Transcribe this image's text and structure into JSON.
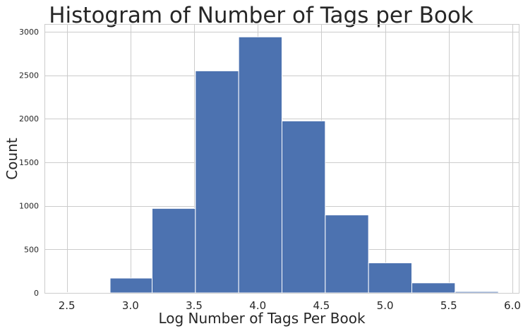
{
  "chart_data": {
    "type": "bar",
    "title": "Histogram of Number of Tags per Book",
    "xlabel": "Log Number of Tags Per Book",
    "ylabel": "Count",
    "bar_color": "#4c72b0",
    "background": "#ffffff",
    "grid_color": "#cccccc",
    "grid": true,
    "xlim": [
      2.33,
      6.05
    ],
    "ylim": [
      0,
      3080
    ],
    "xticks": [
      2.5,
      3.0,
      3.5,
      4.0,
      4.5,
      5.0,
      5.5,
      6.0
    ],
    "xtick_labels": [
      "2.5",
      "3.0",
      "3.5",
      "4.0",
      "4.5",
      "5.0",
      "5.5",
      "6.0"
    ],
    "yticks": [
      0,
      500,
      1000,
      1500,
      2000,
      2500,
      3000
    ],
    "ytick_labels": [
      "0",
      "500",
      "1000",
      "1500",
      "2000",
      "2500",
      "3000"
    ],
    "bins": [
      {
        "start": 2.5,
        "end": 2.84,
        "value": 3
      },
      {
        "start": 2.84,
        "end": 3.17,
        "value": 170
      },
      {
        "start": 3.17,
        "end": 3.51,
        "value": 970
      },
      {
        "start": 3.51,
        "end": 3.85,
        "value": 2550
      },
      {
        "start": 3.85,
        "end": 4.19,
        "value": 2940
      },
      {
        "start": 4.19,
        "end": 4.53,
        "value": 1975
      },
      {
        "start": 4.53,
        "end": 4.87,
        "value": 895
      },
      {
        "start": 4.87,
        "end": 5.21,
        "value": 345
      },
      {
        "start": 5.21,
        "end": 5.55,
        "value": 115
      },
      {
        "start": 5.55,
        "end": 5.89,
        "value": 15
      }
    ]
  }
}
